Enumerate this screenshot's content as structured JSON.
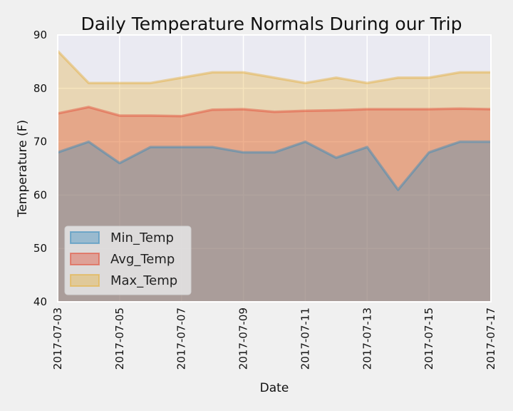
{
  "chart_data": {
    "type": "area",
    "title": "Daily Temperature Normals During our Trip",
    "xlabel": "Date",
    "ylabel": "Temperature (F)",
    "ylim": [
      40,
      90
    ],
    "yticks": [
      40,
      50,
      60,
      70,
      80,
      90
    ],
    "grid": true,
    "legend_position": "lower-left",
    "x": [
      "2017-07-03",
      "2017-07-04",
      "2017-07-05",
      "2017-07-06",
      "2017-07-07",
      "2017-07-08",
      "2017-07-09",
      "2017-07-10",
      "2017-07-11",
      "2017-07-12",
      "2017-07-13",
      "2017-07-14",
      "2017-07-15",
      "2017-07-16",
      "2017-07-17"
    ],
    "xtick_labels": [
      "2017-07-03",
      "2017-07-05",
      "2017-07-07",
      "2017-07-09",
      "2017-07-11",
      "2017-07-13",
      "2017-07-15",
      "2017-07-17"
    ],
    "series": [
      {
        "name": "Min_Temp",
        "color": "#348abd",
        "values": [
          68,
          70,
          66,
          69,
          69,
          69,
          68,
          68,
          70,
          67,
          69,
          61,
          68,
          70,
          70
        ]
      },
      {
        "name": "Avg_Temp",
        "color": "#e24a33",
        "values": [
          75.3,
          76.5,
          74.9,
          74.9,
          74.8,
          76.0,
          76.1,
          75.6,
          75.8,
          75.9,
          76.1,
          76.1,
          76.1,
          76.2,
          76.1
        ]
      },
      {
        "name": "Max_Temp",
        "color": "#e5ae38",
        "values": [
          87,
          81,
          81,
          81,
          82,
          83,
          83,
          82,
          81,
          82,
          81,
          82,
          82,
          83,
          83
        ]
      }
    ],
    "colors": {
      "plot_bg": "#eaeaf2",
      "figure_bg": "#f0f0f0",
      "grid": "#ffffff"
    }
  }
}
